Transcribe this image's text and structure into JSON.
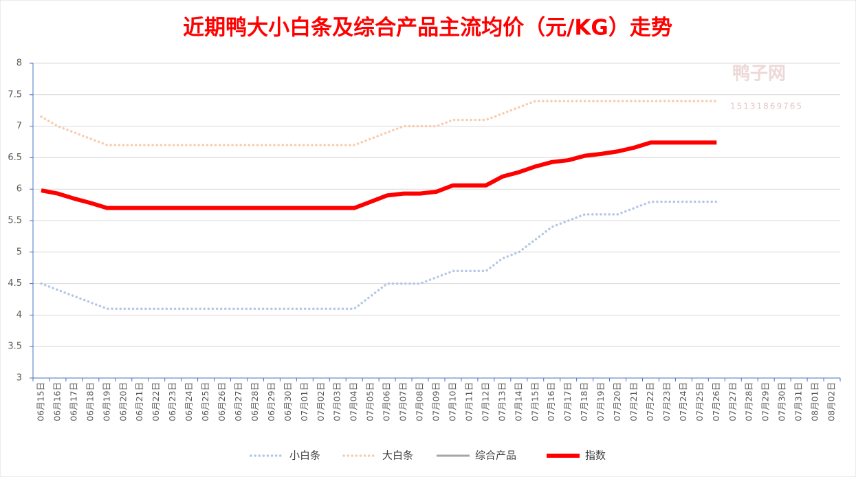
{
  "chart_data": {
    "type": "line",
    "title": "近期鸭大小白条及综合产品主流均价（元/KG）走势",
    "watermark": [
      "鸭子网",
      "15131869765"
    ],
    "categories": [
      "06月15日",
      "06月16日",
      "06月17日",
      "06月18日",
      "06月19日",
      "06月20日",
      "06月21日",
      "06月22日",
      "06月23日",
      "06月24日",
      "06月25日",
      "06月26日",
      "06月27日",
      "06月28日",
      "06月29日",
      "06月30日",
      "07月01日",
      "07月02日",
      "07月03日",
      "07月04日",
      "07月05日",
      "07月06日",
      "07月07日",
      "07月08日",
      "07月09日",
      "07月10日",
      "07月11日",
      "07月12日",
      "07月13日",
      "07月14日",
      "07月15日",
      "07月16日",
      "07月17日",
      "07月18日",
      "07月19日",
      "07月20日",
      "07月21日",
      "07月22日",
      "07月23日",
      "07月24日",
      "07月25日",
      "07月26日",
      "07月27日",
      "07月28日",
      "07月29日",
      "07月30日",
      "07月31日",
      "08月01日",
      "08月02日"
    ],
    "series": [
      {
        "name": "小白条",
        "color": "#b4c7e7",
        "style": "dotted",
        "values": [
          4.5,
          4.4,
          4.3,
          4.2,
          4.1,
          4.1,
          4.1,
          4.1,
          4.1,
          4.1,
          4.1,
          4.1,
          4.1,
          4.1,
          4.1,
          4.1,
          4.1,
          4.1,
          4.1,
          4.1,
          4.3,
          4.5,
          4.5,
          4.5,
          4.6,
          4.7,
          4.7,
          4.7,
          4.9,
          5.0,
          5.2,
          5.4,
          5.5,
          5.6,
          5.6,
          5.6,
          5.7,
          5.8,
          5.8,
          5.8,
          5.8,
          5.8,
          null,
          null,
          null,
          null,
          null,
          null,
          null
        ]
      },
      {
        "name": "大白条",
        "color": "#f8cbad",
        "style": "dotted",
        "values": [
          7.15,
          7.0,
          6.9,
          6.8,
          6.7,
          6.7,
          6.7,
          6.7,
          6.7,
          6.7,
          6.7,
          6.7,
          6.7,
          6.7,
          6.7,
          6.7,
          6.7,
          6.7,
          6.7,
          6.7,
          6.8,
          6.9,
          7.0,
          7.0,
          7.0,
          7.1,
          7.1,
          7.1,
          7.2,
          7.3,
          7.4,
          7.4,
          7.4,
          7.4,
          7.4,
          7.4,
          7.4,
          7.4,
          7.4,
          7.4,
          7.4,
          7.4,
          null,
          null,
          null,
          null,
          null,
          null,
          null
        ]
      },
      {
        "name": "综合产品",
        "color": "#a5a5a5",
        "style": "solid",
        "values": [
          null,
          null,
          null,
          null,
          null,
          null,
          null,
          null,
          null,
          null,
          null,
          null,
          null,
          null,
          null,
          null,
          null,
          null,
          null,
          null,
          null,
          null,
          null,
          null,
          null,
          null,
          null,
          null,
          null,
          null,
          null,
          null,
          null,
          null,
          null,
          null,
          null,
          null,
          null,
          null,
          null,
          null,
          null,
          null,
          null,
          null,
          null,
          null,
          null
        ]
      },
      {
        "name": "指数",
        "color": "#ff0000",
        "style": "thick",
        "values": [
          5.98,
          5.93,
          5.85,
          5.78,
          5.7,
          5.7,
          5.7,
          5.7,
          5.7,
          5.7,
          5.7,
          5.7,
          5.7,
          5.7,
          5.7,
          5.7,
          5.7,
          5.7,
          5.7,
          5.7,
          5.8,
          5.9,
          5.93,
          5.93,
          5.96,
          6.06,
          6.06,
          6.06,
          6.2,
          6.27,
          6.36,
          6.43,
          6.46,
          6.53,
          6.56,
          6.6,
          6.66,
          6.74,
          6.74,
          6.74,
          6.74,
          6.74,
          null,
          null,
          null,
          null,
          null,
          null,
          null
        ]
      }
    ],
    "ylim": [
      3,
      8
    ],
    "yticks": [
      3,
      3.5,
      4,
      4.5,
      5,
      5.5,
      6,
      6.5,
      7,
      7.5,
      8
    ],
    "grid": true,
    "legend": "bottom"
  }
}
